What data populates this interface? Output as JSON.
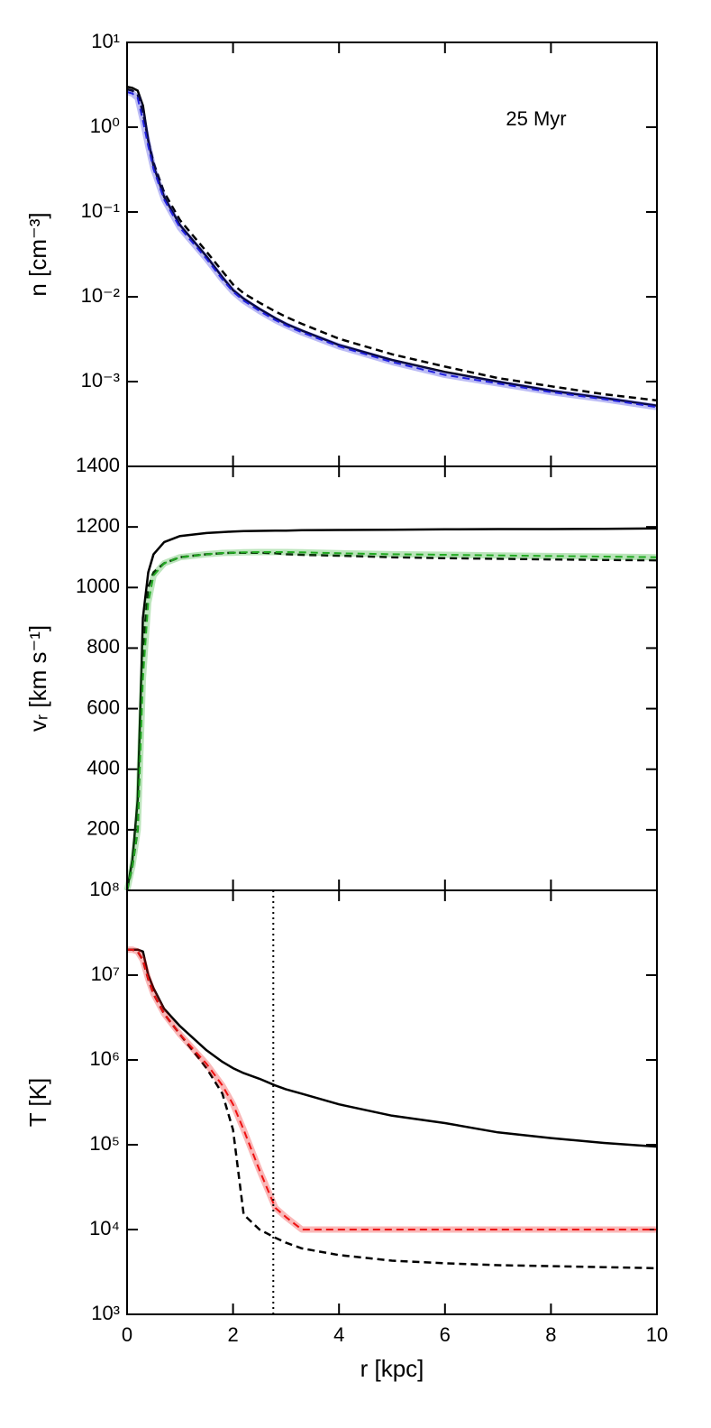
{
  "chart_data": [
    {
      "type": "line",
      "annotation": "25 Myr",
      "ylabel": "n [cm⁻³]",
      "log_y": true,
      "xlim": [
        0,
        10
      ],
      "ylim": [
        0.0001,
        10
      ],
      "yticks": [
        {
          "value": 0.001,
          "label": "10⁻³"
        },
        {
          "value": 0.01,
          "label": "10⁻²"
        },
        {
          "value": 0.1,
          "label": "10⁻¹"
        },
        {
          "value": 1,
          "label": "10⁰"
        },
        {
          "value": 10,
          "label": "10¹"
        }
      ],
      "x": [
        0,
        0.1,
        0.2,
        0.3,
        0.4,
        0.5,
        0.7,
        1,
        1.5,
        1.8,
        2,
        2.2,
        2.5,
        2.8,
        3,
        3.3,
        4,
        5,
        6,
        7,
        8,
        9,
        10
      ],
      "series": [
        {
          "color": "#000000",
          "style": "solid",
          "values": [
            3,
            2.9,
            2.7,
            1.8,
            0.7,
            0.35,
            0.15,
            0.07,
            0.03,
            0.017,
            0.012,
            0.0095,
            0.0072,
            0.0056,
            0.0048,
            0.004,
            0.0027,
            0.0018,
            0.0013,
            0.001,
            0.00078,
            0.00064,
            0.00052
          ]
        },
        {
          "color": "#000000",
          "style": "dashed",
          "values": [
            2.8,
            2.7,
            2.4,
            1.5,
            0.7,
            0.38,
            0.17,
            0.08,
            0.034,
            0.02,
            0.014,
            0.011,
            0.0085,
            0.0067,
            0.0058,
            0.0048,
            0.0032,
            0.0021,
            0.0015,
            0.0011,
            0.00088,
            0.00071,
            0.0006
          ]
        },
        {
          "color": "#2222dd",
          "style": "band",
          "values": [
            2.6,
            2.5,
            2.2,
            1.2,
            0.6,
            0.32,
            0.14,
            0.065,
            0.028,
            0.016,
            0.0115,
            0.009,
            0.0068,
            0.0053,
            0.0046,
            0.0038,
            0.0026,
            0.0017,
            0.0012,
            0.00095,
            0.00075,
            0.00062,
            0.0005
          ]
        }
      ]
    },
    {
      "type": "line",
      "ylabel": "vᵣ [km s⁻¹]",
      "log_y": false,
      "xlim": [
        0,
        10
      ],
      "ylim": [
        0,
        1400
      ],
      "yticks": [
        200,
        400,
        600,
        800,
        1000,
        1200,
        1400
      ],
      "x": [
        0,
        0.1,
        0.2,
        0.3,
        0.4,
        0.5,
        0.7,
        1,
        1.5,
        1.8,
        2,
        2.2,
        2.5,
        2.8,
        3,
        3.3,
        4,
        5,
        6,
        7,
        8,
        9,
        10
      ],
      "series": [
        {
          "color": "#000000",
          "style": "solid",
          "values": [
            0,
            100,
            300,
            900,
            1050,
            1110,
            1150,
            1170,
            1180,
            1183,
            1185,
            1186,
            1187,
            1188,
            1188,
            1189,
            1190,
            1191,
            1192,
            1193,
            1193,
            1194,
            1195
          ]
        },
        {
          "color": "#000000",
          "style": "dashed",
          "values": [
            0,
            80,
            200,
            800,
            1000,
            1050,
            1080,
            1100,
            1110,
            1113,
            1115,
            1115,
            1115,
            1113,
            1110,
            1108,
            1105,
            1100,
            1097,
            1095,
            1093,
            1091,
            1090
          ]
        },
        {
          "color": "#22aa22",
          "style": "band",
          "values": [
            0,
            80,
            200,
            700,
            950,
            1040,
            1080,
            1100,
            1110,
            1114,
            1115,
            1116,
            1117,
            1117,
            1117,
            1116,
            1113,
            1110,
            1108,
            1106,
            1104,
            1102,
            1100
          ]
        }
      ]
    },
    {
      "type": "line",
      "ylabel": "T [K]",
      "xlabel": "r [kpc]",
      "log_y": true,
      "xlim": [
        0,
        10
      ],
      "ylim": [
        1000,
        100000000
      ],
      "xticks": [
        0,
        2,
        4,
        6,
        8,
        10
      ],
      "vline": 2.76,
      "yticks": [
        {
          "value": 1000,
          "label": "10³"
        },
        {
          "value": 10000,
          "label": "10⁴"
        },
        {
          "value": 100000,
          "label": "10⁵"
        },
        {
          "value": 1000000,
          "label": "10⁶"
        },
        {
          "value": 10000000,
          "label": "10⁷"
        },
        {
          "value": 100000000,
          "label": "10⁸"
        }
      ],
      "x": [
        0,
        0.1,
        0.2,
        0.3,
        0.4,
        0.5,
        0.7,
        1,
        1.5,
        1.8,
        2,
        2.2,
        2.5,
        2.8,
        3,
        3.3,
        4,
        5,
        6,
        7,
        8,
        9,
        10
      ],
      "series": [
        {
          "color": "#000000",
          "style": "solid",
          "values": [
            20000000,
            20000000,
            20000000,
            19000000,
            10000000,
            7000000,
            4000000,
            2500000,
            1300000,
            950000,
            800000,
            700000,
            600000,
            500000,
            450000,
            400000,
            300000,
            220000,
            180000,
            140000,
            120000,
            105000,
            95000
          ]
        },
        {
          "color": "#000000",
          "style": "dashed",
          "values": [
            20000000,
            20000000,
            19000000,
            15000000,
            9000000,
            6000000,
            3500000,
            2000000,
            800000,
            400000,
            150000,
            15000,
            10000,
            8000,
            7000,
            6000,
            5000,
            4300,
            4000,
            3800,
            3700,
            3600,
            3500
          ]
        },
        {
          "color": "#ee1111",
          "style": "band",
          "values": [
            20000000,
            20000000,
            19000000,
            15000000,
            9000000,
            6000000,
            3500000,
            2000000,
            900000,
            500000,
            300000,
            150000,
            50000,
            18000,
            14000,
            10000,
            10000,
            10000,
            10000,
            10000,
            10000,
            10000,
            10000
          ]
        }
      ]
    }
  ]
}
